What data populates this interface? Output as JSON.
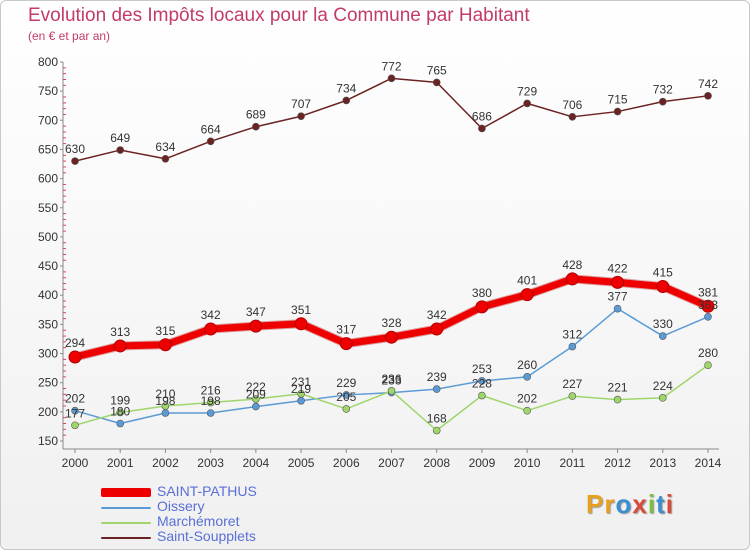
{
  "title": "Evolution des Impôts locaux pour la Commune par Habitant",
  "subtitle": "(en € et par an)",
  "brand": "Proxiti",
  "chart_data": {
    "type": "line",
    "title": "Evolution des Impôts locaux pour la Commune par Habitant",
    "subtitle": "(en € et par an)",
    "xlabel": "",
    "ylabel": "",
    "ylim": [
      150,
      800
    ],
    "yticks": [
      150,
      200,
      250,
      300,
      350,
      400,
      450,
      500,
      550,
      600,
      650,
      700,
      750,
      800
    ],
    "grid": false,
    "legend": "bottom-left",
    "x": [
      "2000",
      "2001",
      "2002",
      "2003",
      "2004",
      "2005",
      "2006",
      "2007",
      "2008",
      "2009",
      "2010",
      "2011",
      "2012",
      "2013",
      "2014"
    ],
    "series": [
      {
        "name": "SAINT-PATHUS",
        "color": "#ee0000",
        "emphasis": true,
        "values": [
          294,
          313,
          315,
          342,
          347,
          351,
          317,
          328,
          342,
          380,
          401,
          428,
          422,
          415,
          381
        ]
      },
      {
        "name": "Oissery",
        "color": "#5b9bd5",
        "emphasis": false,
        "values": [
          202,
          180,
          198,
          198,
          209,
          219,
          229,
          233,
          239,
          253,
          260,
          312,
          377,
          330,
          363
        ]
      },
      {
        "name": "Marchémoret",
        "color": "#9fd66b",
        "emphasis": false,
        "values": [
          177,
          199,
          210,
          216,
          222,
          231,
          205,
          236,
          168,
          228,
          202,
          227,
          221,
          224,
          280
        ]
      },
      {
        "name": "Saint-Soupplets",
        "color": "#6b2222",
        "emphasis": false,
        "values": [
          630,
          649,
          634,
          664,
          689,
          707,
          734,
          772,
          765,
          686,
          729,
          706,
          715,
          732,
          742
        ]
      }
    ]
  }
}
